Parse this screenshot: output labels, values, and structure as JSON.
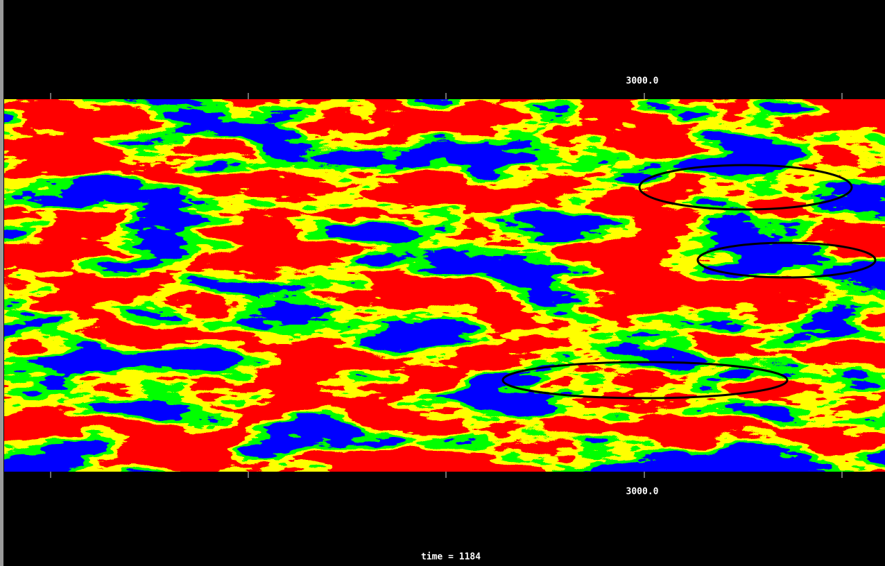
{
  "top_axis": {
    "label": "3000.0"
  },
  "bottom_axis": {
    "label": "3000.0"
  },
  "caption": "time = 1184"
}
